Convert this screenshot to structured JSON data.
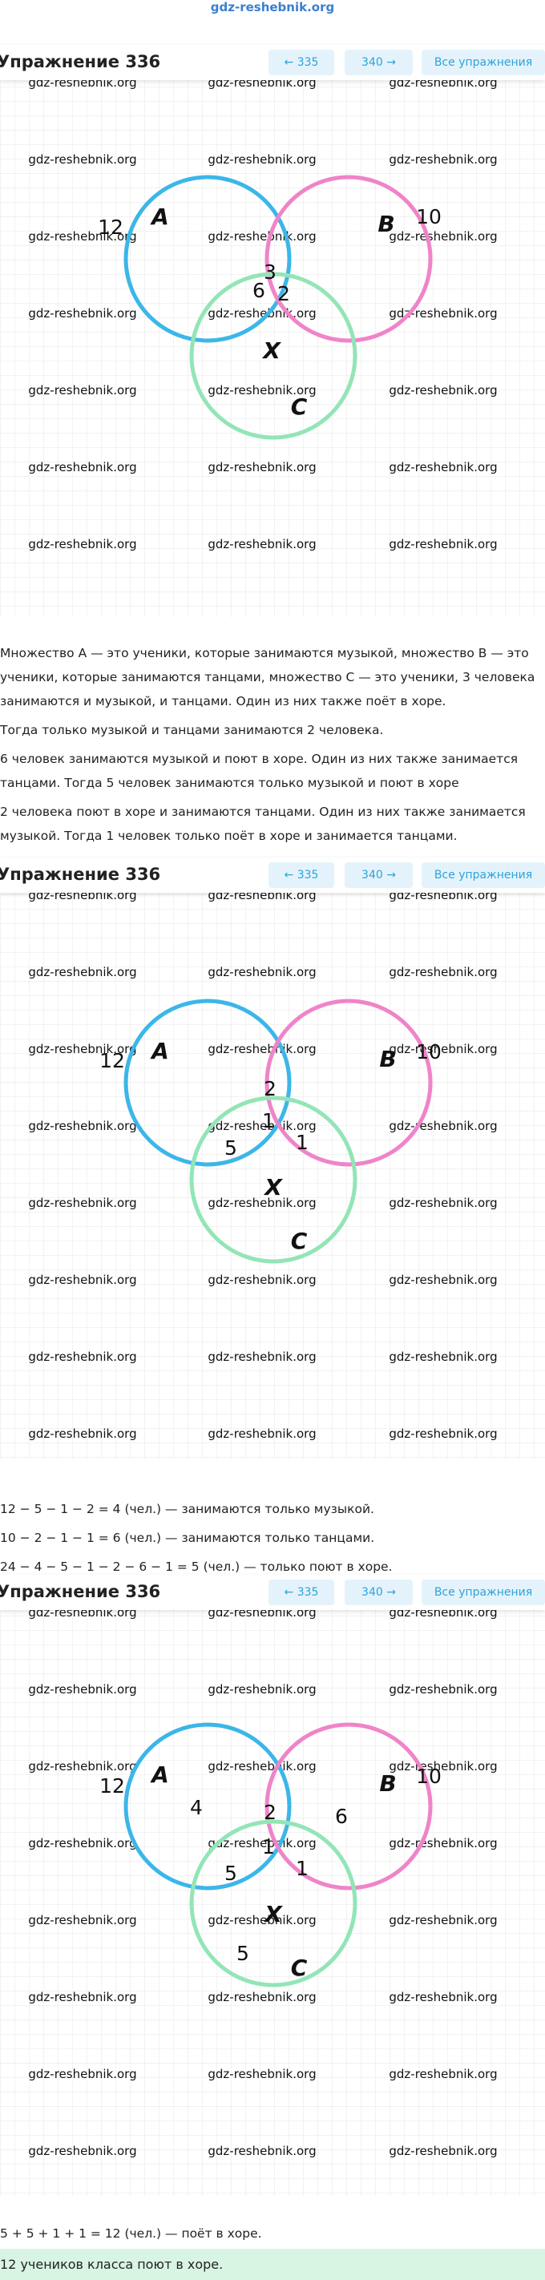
{
  "site": "gdz-reshebnik.org",
  "watermark": "gdz-reshebnik.org",
  "sections": [
    {
      "header": {
        "title": "Упражнение 336",
        "prev": "← 335",
        "next": "340 →",
        "all": "Все упражнения"
      },
      "diagram": {
        "labels": [
          "12",
          "A",
          "B",
          "10",
          "3",
          "6",
          "2",
          "X",
          "C"
        ]
      },
      "text": [
        "Множество A — это ученики, которые занимаются музыкой, множество B — это ученики, которые занимаются танцами, множество C — это ученики, 3 человека занимаются и музыкой, и танцами. Один из них также поёт в хоре.",
        "Тогда только музыкой и танцами занимаются 2 человека.",
        "6 человек занимаются музыкой и поют в хоре. Один из них также занимается танцами. Тогда 5 человек занимаются только музыкой и поют в хоре",
        "2 человека поют в хоре и занимаются танцами. Один из них также занимается музыкой. Тогда 1 человек только поёт в хоре и занимается танцами."
      ]
    },
    {
      "header": {
        "title": "Упражнение 336",
        "prev": "← 335",
        "next": "340 →",
        "all": "Все упражнения"
      },
      "diagram": {
        "labels": [
          "12",
          "A",
          "B",
          "10",
          "2",
          "1",
          "5",
          "1",
          "X",
          "C"
        ]
      },
      "text": [
        "12 − 5 − 1 − 2 = 4 (чел.) — занимаются только музыкой.",
        "10 − 2 − 1 − 1 = 6 (чел.) — занимаются только танцами.",
        "24 − 4 − 5 − 1 − 2 − 6 − 1 = 5 (чел.) — только поют в хоре."
      ]
    },
    {
      "header": {
        "title": "Упражнение 336",
        "prev": "← 335",
        "next": "340 →",
        "all": "Все упражнения"
      },
      "diagram": {
        "labels": [
          "12",
          "A",
          "4",
          "2",
          "6",
          "B",
          "10",
          "1",
          "1",
          "5",
          "X",
          "5",
          "C"
        ]
      },
      "text": [
        "5 + 5 + 1 + 1 = 12 (чел.) — поёт в хоре."
      ],
      "answer": "12 учеников класса поют в хоре."
    }
  ]
}
